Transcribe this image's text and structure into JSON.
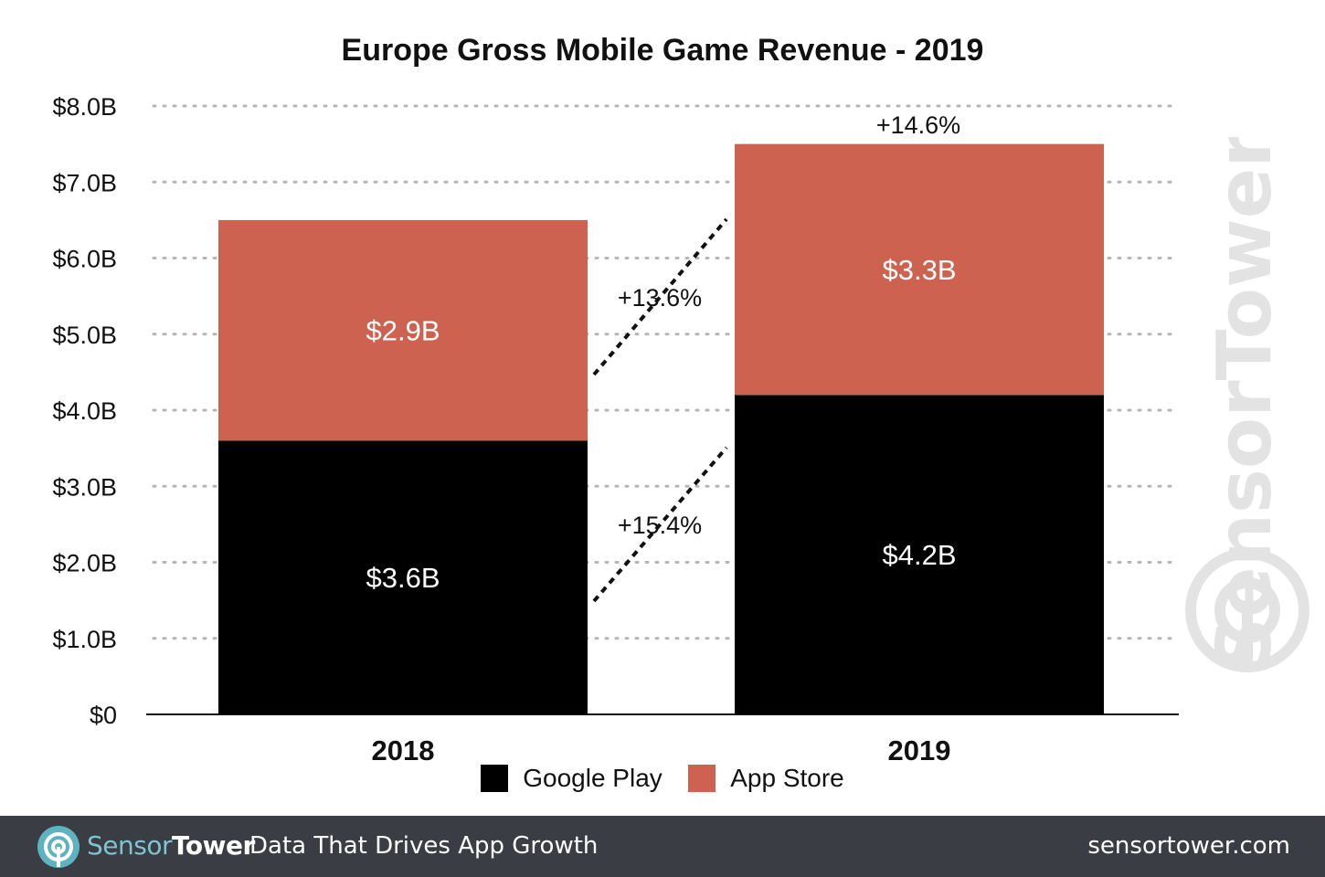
{
  "chart_data": {
    "type": "bar",
    "stacked": true,
    "title": "Europe Gross Mobile Game Revenue - 2019",
    "categories": [
      "2018",
      "2019"
    ],
    "series": [
      {
        "name": "Google Play",
        "values": [
          3.6,
          4.2
        ],
        "labels": [
          "$3.6B",
          "$4.2B"
        ],
        "color": "#000000"
      },
      {
        "name": "App Store",
        "values": [
          2.9,
          3.3
        ],
        "labels": [
          "$2.9B",
          "$3.3B"
        ],
        "color": "#cc624f"
      }
    ],
    "ylim": [
      0,
      8
    ],
    "yticks": [
      0,
      1,
      2,
      3,
      4,
      5,
      6,
      7,
      8
    ],
    "ytick_labels": [
      "$0",
      "$1.0B",
      "$2.0B",
      "$3.0B",
      "$4.0B",
      "$5.0B",
      "$6.0B",
      "$7.0B",
      "$8.0B"
    ],
    "grid": true,
    "legend_position": "bottom",
    "annotations": {
      "total_growth": "+14.6%",
      "app_store_growth": "+13.6%",
      "google_play_growth": "+15.4%"
    }
  },
  "watermark": "SensorTower",
  "footer": {
    "brand_part1": "Sensor",
    "brand_part2": "Tower",
    "tagline": "Data That Drives App Growth",
    "url": "sensortower.com"
  }
}
